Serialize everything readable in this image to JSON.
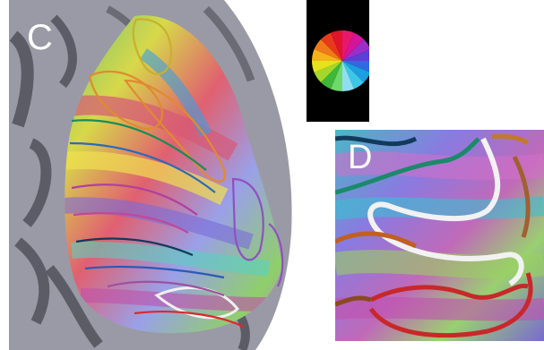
{
  "panels": {
    "c": {
      "label": "C"
    },
    "d": {
      "label": "D"
    }
  },
  "phase_key": {
    "wedge_colors": [
      "#e8176e",
      "#d4149a",
      "#9b2ec8",
      "#5b3fd6",
      "#2f6be0",
      "#1c9fe0",
      "#3ec6e8",
      "#8fdff0",
      "#6ed86a",
      "#3db83a",
      "#a3d82a",
      "#e6e21c",
      "#f5b21a",
      "#f07a1a",
      "#e83a1a",
      "#e0142a"
    ]
  },
  "colors": {
    "background": "#ffffff",
    "label": "#ffffff",
    "key_background": "#000000"
  }
}
